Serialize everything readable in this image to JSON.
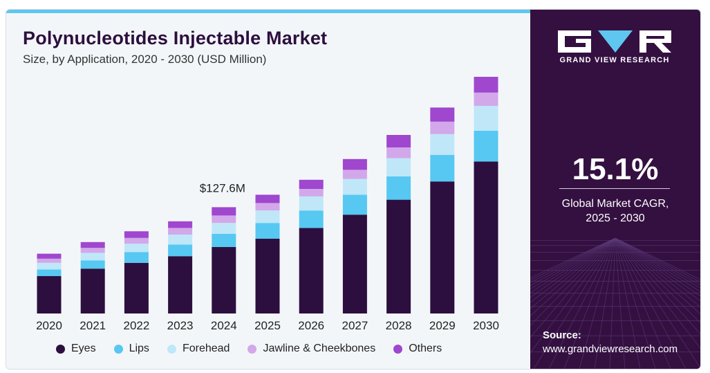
{
  "header": {
    "title": "Polynucleotides Injectable Market",
    "subtitle": "Size, by Application, 2020 - 2030 (USD Million)"
  },
  "colors": {
    "eyes": "#2c0f3e",
    "lips": "#56c8f2",
    "forehead": "#bfe7f8",
    "jawline": "#d2a8ea",
    "others": "#9f47cf",
    "sidebar": "#341041",
    "accent_bar": "#5fc6ef"
  },
  "chart_data": {
    "type": "bar",
    "stacked": true,
    "categories": [
      "2020",
      "2021",
      "2022",
      "2023",
      "2024",
      "2025",
      "2026",
      "2027",
      "2028",
      "2029",
      "2030"
    ],
    "series": [
      {
        "name": "Eyes",
        "values": [
          45,
          54,
          61,
          69,
          80,
          90,
          103,
          119,
          137,
          159,
          183
        ]
      },
      {
        "name": "Lips",
        "values": [
          8,
          10,
          13,
          14,
          16,
          19,
          21,
          24,
          28,
          32,
          37
        ]
      },
      {
        "name": "Forehead",
        "values": [
          8,
          9,
          10,
          12,
          13,
          15,
          17,
          19,
          22,
          25,
          30
        ]
      },
      {
        "name": "Jawline & Cheekbones",
        "values": [
          5,
          6,
          7,
          8,
          9,
          9,
          9,
          11,
          13,
          15,
          16
        ]
      },
      {
        "name": "Others",
        "values": [
          6,
          7,
          8,
          8,
          10,
          10,
          11,
          13,
          15,
          17,
          19
        ]
      }
    ],
    "annotations": [
      {
        "category": "2024",
        "text": "$127.6M"
      }
    ],
    "legend_position": "bottom",
    "grid": false,
    "ylim": [
      0,
      290
    ],
    "xlabel": "",
    "ylabel": ""
  },
  "sidebar": {
    "logo_text": "GRAND VIEW RESEARCH",
    "cagr_value": "15.1%",
    "cagr_label_line1": "Global Market CAGR,",
    "cagr_label_line2": "2025 - 2030",
    "source_title": "Source:",
    "source_url": "www.grandviewresearch.com"
  }
}
